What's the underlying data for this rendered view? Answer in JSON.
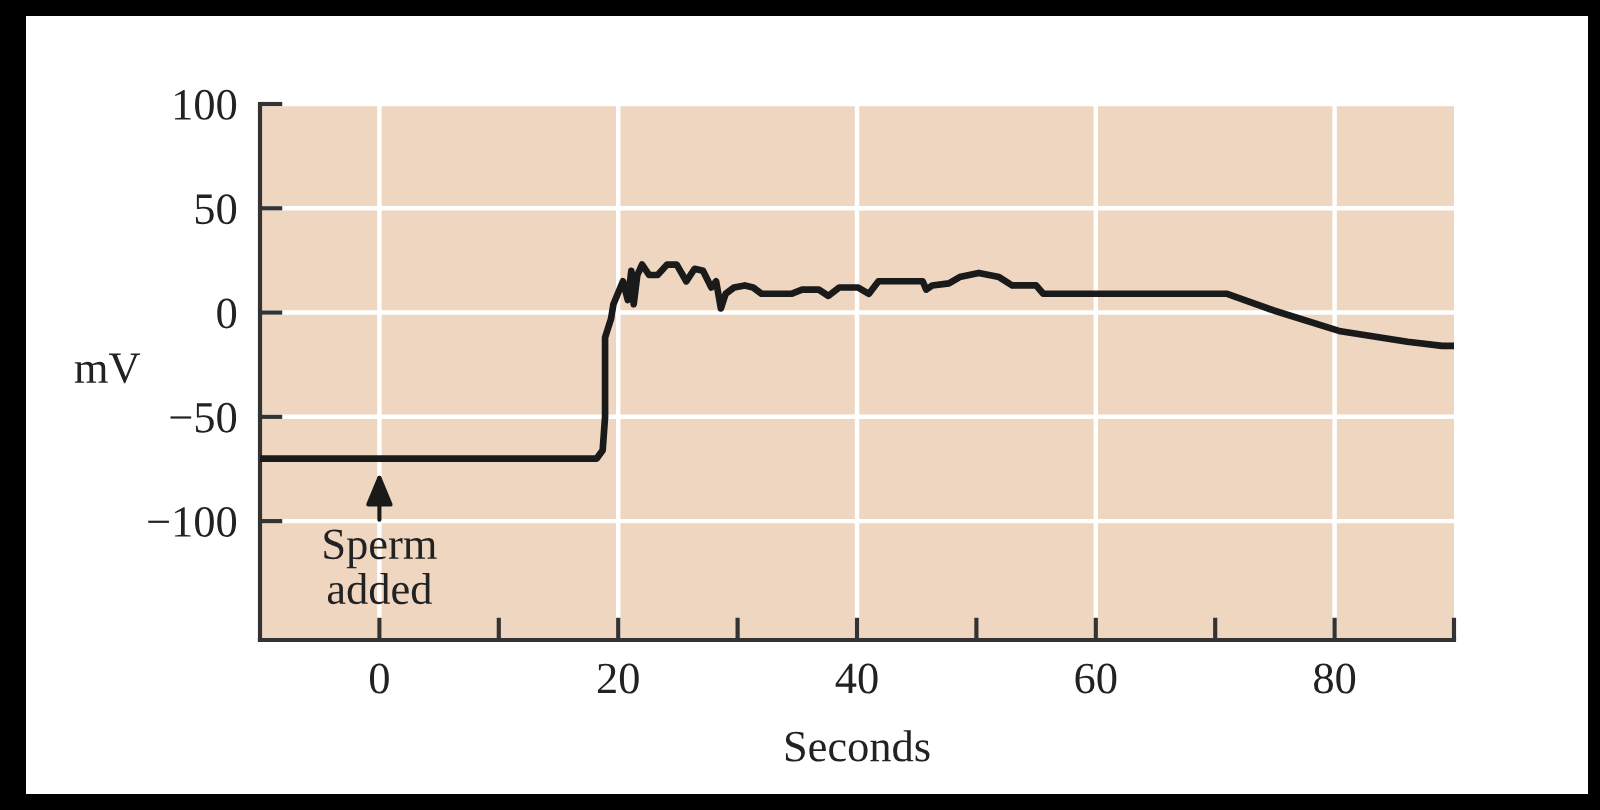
{
  "chart_data": {
    "type": "line",
    "xlabel": "Seconds",
    "ylabel": "mV",
    "x": [
      -10,
      18.2,
      18.7,
      18.9,
      18.9,
      19.4,
      19.6,
      20.4,
      20.8,
      21.1,
      21.3,
      21.6,
      22.0,
      22.6,
      23.3,
      24.1,
      24.9,
      25.7,
      26.4,
      27.1,
      27.8,
      28.2,
      28.6,
      29.0,
      29.7,
      30.6,
      31.3,
      32.0,
      34.5,
      35.4,
      36.8,
      37.6,
      38.5,
      40.1,
      41.0,
      41.8,
      45.5,
      45.8,
      46.3,
      47.7,
      48.6,
      50.2,
      51.9,
      53.0,
      55.0,
      55.6,
      71.0,
      74.9,
      80.5,
      86.1,
      89.0,
      90
    ],
    "series": [
      {
        "color": "#1a1a1a",
        "values": [
          -70,
          -70,
          -66,
          -50,
          -12,
          -3,
          4,
          15,
          6,
          20,
          4,
          18,
          23,
          18,
          18,
          23,
          23,
          15,
          21,
          20,
          12,
          15,
          2,
          9,
          12,
          13,
          12,
          9,
          9,
          11,
          11,
          8,
          12,
          12,
          9,
          15,
          15,
          11,
          13,
          14,
          17,
          19,
          17,
          13,
          13,
          9,
          9,
          1,
          -9,
          -14,
          -16,
          -16
        ]
      }
    ],
    "xlim": [
      -10,
      90
    ],
    "ylim": [
      -157,
      100
    ],
    "xticks": [
      0,
      {
        "value": 10,
        "label": null
      },
      20,
      {
        "value": 30,
        "label": null
      },
      40,
      {
        "value": 50,
        "label": null
      },
      60,
      {
        "value": 70,
        "label": null
      },
      80,
      {
        "value": 90,
        "label": null
      }
    ],
    "yticks": [
      -100,
      -50,
      0,
      50,
      100
    ],
    "grid": true,
    "marker": "none",
    "line_style": "solid",
    "annotations": [
      {
        "text": "Sperm\nadded",
        "x": 0,
        "y": -70
      }
    ]
  }
}
